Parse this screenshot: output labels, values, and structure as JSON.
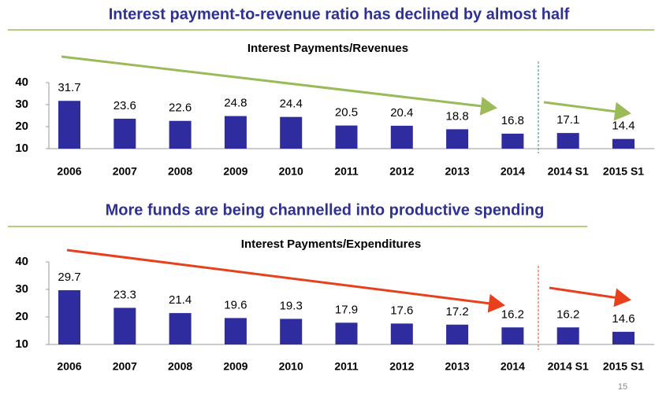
{
  "chart_data": [
    {
      "type": "bar",
      "heading": "Interest payment-to-revenue ratio has declined by almost half",
      "title": "Interest Payments/Revenues",
      "categories": [
        "2006",
        "2007",
        "2008",
        "2009",
        "2010",
        "2011",
        "2012",
        "2013",
        "2014",
        "2014 S1",
        "2015 S1"
      ],
      "values": [
        31.7,
        23.6,
        22.6,
        24.8,
        24.4,
        20.5,
        20.4,
        18.8,
        16.8,
        17.1,
        14.4
      ],
      "color": "#2f2c9f",
      "ylim": [
        10,
        40
      ],
      "yticks": [
        10,
        20,
        30,
        40
      ],
      "grid": false
    },
    {
      "type": "bar",
      "heading": "More funds are being channelled into productive spending",
      "title": "Interest Payments/Expenditures",
      "categories": [
        "2006",
        "2007",
        "2008",
        "2009",
        "2010",
        "2011",
        "2012",
        "2013",
        "2014",
        "2014 S1",
        "2015 S1"
      ],
      "values": [
        29.7,
        23.3,
        21.4,
        19.6,
        19.3,
        17.9,
        17.6,
        17.2,
        16.2,
        16.2,
        14.6
      ],
      "color": "#2f2c9f",
      "ylim": [
        10,
        40
      ],
      "yticks": [
        10,
        20,
        30,
        40
      ],
      "grid": false
    }
  ],
  "page_number": "15"
}
